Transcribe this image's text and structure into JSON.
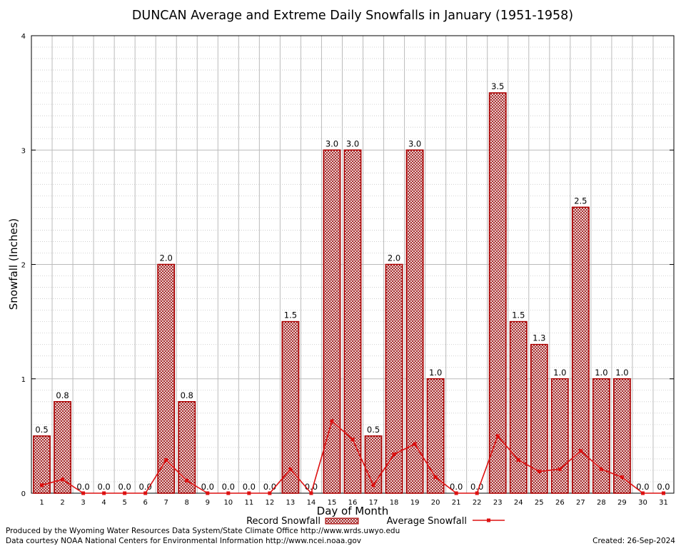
{
  "chart_data": {
    "type": "bar",
    "title": "DUNCAN Average and Extreme Daily Snowfalls in January (1951-1958)",
    "xlabel": "Day of Month",
    "ylabel": "Snowfall (Inches)",
    "ylim": [
      0,
      4
    ],
    "yticks": [
      "0",
      "1",
      "2",
      "3",
      "4"
    ],
    "categories": [
      "1",
      "2",
      "3",
      "4",
      "5",
      "6",
      "7",
      "8",
      "9",
      "10",
      "11",
      "12",
      "13",
      "14",
      "15",
      "16",
      "17",
      "18",
      "19",
      "20",
      "21",
      "22",
      "23",
      "24",
      "25",
      "26",
      "27",
      "28",
      "29",
      "30",
      "31"
    ],
    "series": [
      {
        "name": "Record Snowfall",
        "kind": "bar",
        "color": "#cc0000",
        "values": [
          0.5,
          0.8,
          0.0,
          0.0,
          0.0,
          0.0,
          2.0,
          0.8,
          0.0,
          0.0,
          0.0,
          0.0,
          1.5,
          0.0,
          3.0,
          3.0,
          0.5,
          2.0,
          3.0,
          1.0,
          0.0,
          0.0,
          3.5,
          1.5,
          1.3,
          1.0,
          2.5,
          1.0,
          1.0,
          0.0,
          0.0
        ],
        "labels": [
          "0.5",
          "0.8",
          "0.0",
          "0.0",
          "0.0",
          "0.0",
          "2.0",
          "0.8",
          "0.0",
          "0.0",
          "0.0",
          "0.0",
          "1.5",
          "0.0",
          "3.0",
          "3.0",
          "0.5",
          "2.0",
          "3.0",
          "1.0",
          "0.0",
          "0.0",
          "3.5",
          "1.5",
          "1.3",
          "1.0",
          "2.5",
          "1.0",
          "1.0",
          "0.0",
          "0.0"
        ]
      },
      {
        "name": "Average Snowfall",
        "kind": "line",
        "color": "#dd1111",
        "values": [
          0.07,
          0.12,
          0.0,
          0.0,
          0.0,
          0.0,
          0.29,
          0.11,
          0.0,
          0.0,
          0.0,
          0.0,
          0.21,
          0.0,
          0.63,
          0.47,
          0.07,
          0.34,
          0.43,
          0.14,
          0.0,
          0.0,
          0.5,
          0.29,
          0.19,
          0.21,
          0.37,
          0.21,
          0.14,
          0.0,
          0.0
        ]
      }
    ],
    "grid": true,
    "legend": "bottom-center"
  },
  "footer": {
    "producer": "Produced by the Wyoming Water Resources Data System/State Climate Office http://www.wrds.uwyo.edu",
    "courtesy": "Data courtesy NOAA National Centers for Environmental Information http://www.ncei.noaa.gov",
    "created": "Created:  26-Sep-2024"
  }
}
